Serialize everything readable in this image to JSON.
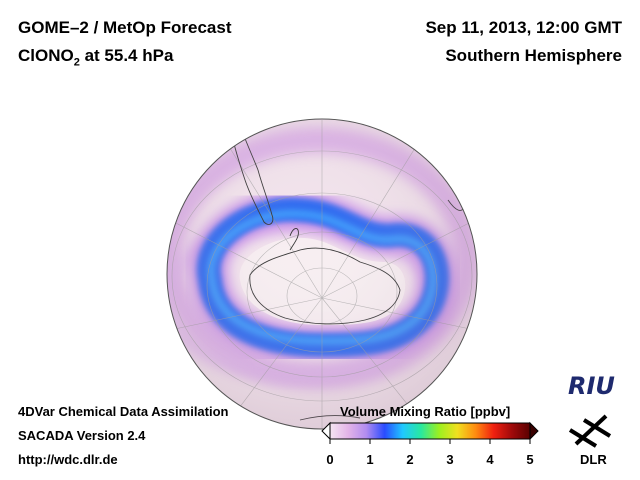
{
  "header": {
    "title": "GOME–2 / MetOp Forecast",
    "species_prefix": "ClONO",
    "species_sub": "2",
    "species_suffix": " at 55.4 hPa",
    "date": "Sep 11, 2013, 12:00 GMT",
    "hemisphere": "Southern Hemisphere"
  },
  "footer": {
    "line1": "4DVar Chemical Data Assimilation",
    "line2": "SACADA Version 2.4",
    "line3": "http://wdc.dlr.de"
  },
  "colorbar": {
    "title": "Volume Mixing Ratio [ppbv]",
    "ticks": [
      "0",
      "1",
      "2",
      "3",
      "4",
      "5"
    ],
    "colors": [
      "#f5e6f2",
      "#e3b4e8",
      "#b18cf0",
      "#2a4cff",
      "#20c8ff",
      "#28e8a0",
      "#9cf020",
      "#f0e020",
      "#ff8c10",
      "#f02010",
      "#a00a0a",
      "#5a0000"
    ]
  },
  "logos": {
    "riu": "RIU",
    "dlr": "DLR"
  },
  "map": {
    "background_color": "#f2e3ec",
    "vortex_color": "#2a68f0",
    "halo_color": "#c890e8",
    "inner_color": "#f7eef2"
  }
}
